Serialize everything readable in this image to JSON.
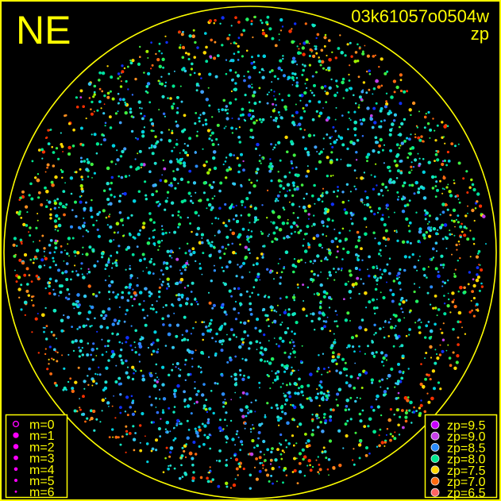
{
  "corner_label": "NE",
  "title": "03k61057o0504w",
  "subtitle": "zp",
  "colors": {
    "frame": "#ffff00",
    "background": "#000000",
    "marker": "#ff00ff"
  },
  "magnitude_legend": [
    {
      "label": "m=0",
      "style": "ring"
    },
    {
      "label": "m=1",
      "style": "dot"
    },
    {
      "label": "m=2",
      "style": "dot"
    },
    {
      "label": "m=3",
      "style": "dot"
    },
    {
      "label": "m=4",
      "style": "dot"
    },
    {
      "label": "m=5",
      "style": "dot"
    },
    {
      "label": "m=6",
      "style": "dot"
    }
  ],
  "zp_legend": [
    {
      "label": "zp=9.5",
      "color": "#c800ff"
    },
    {
      "label": "zp=9.0",
      "color": "#c840e8"
    },
    {
      "label": "zp=8.5",
      "color": "#2a8cff"
    },
    {
      "label": "zp=8.0",
      "color": "#00e890"
    },
    {
      "label": "zp=7.5",
      "color": "#ffd800"
    },
    {
      "label": "zp=7.0",
      "color": "#ff6a10"
    },
    {
      "label": "zp=6.5",
      "color": "#ff6464"
    }
  ]
}
